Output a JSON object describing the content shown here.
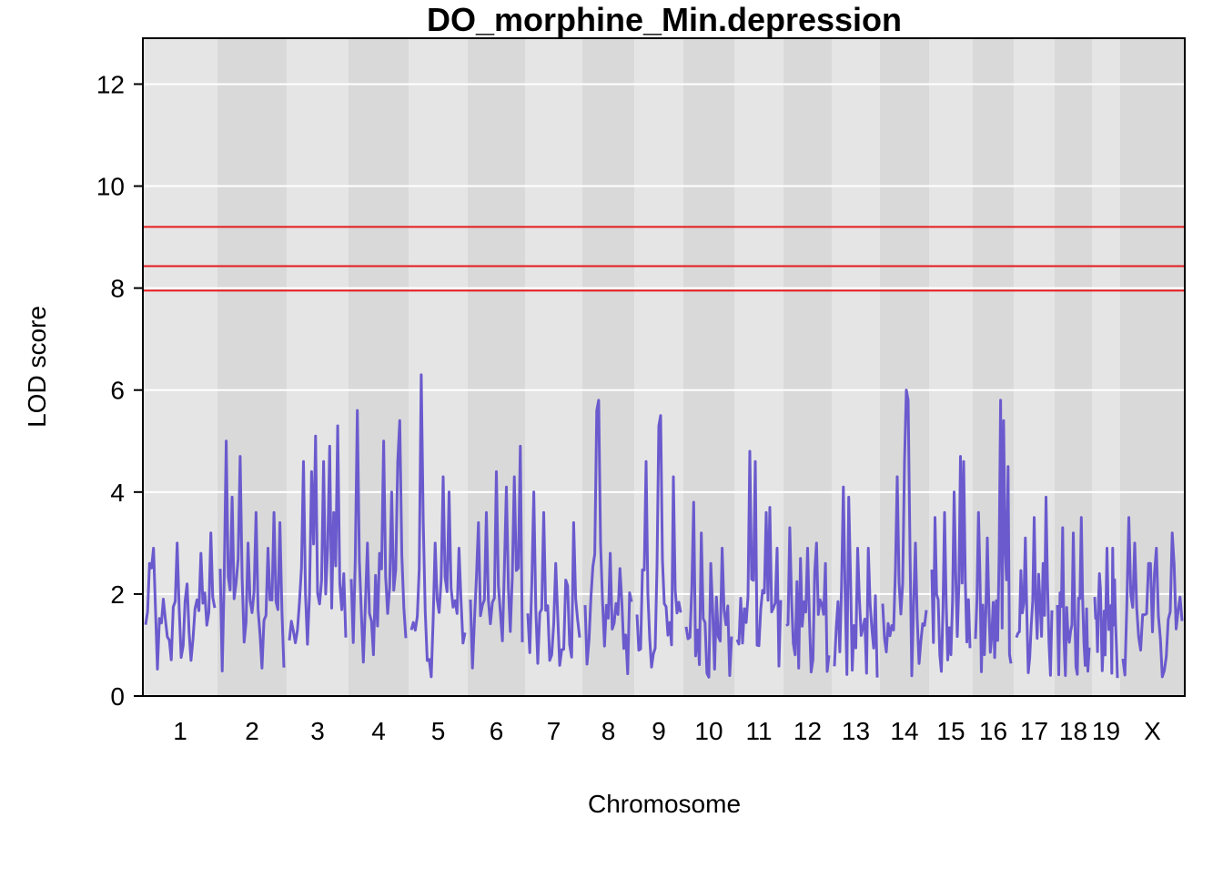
{
  "chart_data": {
    "type": "line",
    "title": "DO_morphine_Min.depression",
    "xlabel": "Chromosome",
    "ylabel": "LOD score",
    "ylim": [
      0,
      12.9
    ],
    "yticks": [
      0,
      2,
      4,
      6,
      8,
      10,
      12
    ],
    "grid": true,
    "colors": {
      "line": "#6a5acd",
      "threshold": "#e41a1c",
      "band_light": "#e5e5e5",
      "band_dark": "#d9d9d9",
      "gridline": "#ffffff"
    },
    "thresholds": [
      7.95,
      8.43,
      9.2
    ],
    "chromosomes": [
      {
        "label": "1",
        "peaks": [
          [
            0.05,
            2.6
          ],
          [
            0.1,
            2.9
          ],
          [
            0.25,
            1.9
          ],
          [
            0.45,
            3.0
          ],
          [
            0.6,
            2.2
          ],
          [
            0.8,
            2.8
          ],
          [
            0.95,
            3.2
          ]
        ]
      },
      {
        "label": "2",
        "peaks": [
          [
            0.1,
            5.0
          ],
          [
            0.2,
            3.9
          ],
          [
            0.3,
            4.7
          ],
          [
            0.45,
            3.0
          ],
          [
            0.55,
            3.6
          ],
          [
            0.75,
            2.9
          ],
          [
            0.85,
            3.6
          ],
          [
            0.95,
            3.4
          ]
        ]
      },
      {
        "label": "3",
        "peaks": [
          [
            0.25,
            4.6
          ],
          [
            0.4,
            4.4
          ],
          [
            0.45,
            5.1
          ],
          [
            0.6,
            4.6
          ],
          [
            0.7,
            4.9
          ],
          [
            0.8,
            3.6
          ],
          [
            0.85,
            5.3
          ],
          [
            0.95,
            2.4
          ]
        ]
      },
      {
        "label": "4",
        "peaks": [
          [
            0.1,
            5.6
          ],
          [
            0.3,
            3.0
          ],
          [
            0.5,
            2.8
          ],
          [
            0.6,
            5.0
          ],
          [
            0.75,
            4.0
          ],
          [
            0.85,
            4.6
          ],
          [
            0.9,
            5.4
          ]
        ]
      },
      {
        "label": "5",
        "peaks": [
          [
            0.15,
            2.5
          ],
          [
            0.2,
            6.3
          ],
          [
            0.45,
            3.0
          ],
          [
            0.6,
            4.3
          ],
          [
            0.7,
            4.0
          ],
          [
            0.9,
            2.9
          ]
        ]
      },
      {
        "label": "6",
        "peaks": [
          [
            0.15,
            3.4
          ],
          [
            0.3,
            3.6
          ],
          [
            0.5,
            4.4
          ],
          [
            0.7,
            4.1
          ],
          [
            0.85,
            4.3
          ],
          [
            0.95,
            4.9
          ]
        ]
      },
      {
        "label": "7",
        "peaks": [
          [
            0.1,
            4.0
          ],
          [
            0.3,
            3.6
          ],
          [
            0.55,
            2.6
          ],
          [
            0.75,
            3.9
          ],
          [
            0.9,
            3.4
          ]
        ]
      },
      {
        "label": "8",
        "peaks": [
          [
            0.25,
            5.6
          ],
          [
            0.3,
            5.8
          ],
          [
            0.55,
            2.8
          ],
          [
            0.75,
            2.5
          ]
        ]
      },
      {
        "label": "9",
        "peaks": [
          [
            0.2,
            4.6
          ],
          [
            0.5,
            5.3
          ],
          [
            0.55,
            5.5
          ],
          [
            0.85,
            4.3
          ]
        ]
      },
      {
        "label": "10",
        "peaks": [
          [
            0.15,
            3.8
          ],
          [
            0.35,
            3.2
          ],
          [
            0.55,
            2.6
          ],
          [
            0.8,
            2.9
          ]
        ]
      },
      {
        "label": "11",
        "peaks": [
          [
            0.3,
            4.8
          ],
          [
            0.4,
            4.6
          ],
          [
            0.65,
            3.6
          ],
          [
            0.75,
            3.7
          ],
          [
            0.9,
            2.9
          ]
        ]
      },
      {
        "label": "12",
        "peaks": [
          [
            0.1,
            3.3
          ],
          [
            0.35,
            2.7
          ],
          [
            0.5,
            2.9
          ],
          [
            0.7,
            3.0
          ],
          [
            0.9,
            2.6
          ]
        ]
      },
      {
        "label": "13",
        "peaks": [
          [
            0.2,
            4.1
          ],
          [
            0.35,
            3.9
          ],
          [
            0.55,
            2.9
          ],
          [
            0.8,
            2.9
          ]
        ]
      },
      {
        "label": "14",
        "peaks": [
          [
            0.35,
            4.3
          ],
          [
            0.5,
            4.6
          ],
          [
            0.55,
            6.0
          ],
          [
            0.6,
            5.8
          ],
          [
            0.75,
            3.0
          ]
        ]
      },
      {
        "label": "15",
        "peaks": [
          [
            0.1,
            3.5
          ],
          [
            0.35,
            3.6
          ],
          [
            0.6,
            4.0
          ],
          [
            0.75,
            4.7
          ],
          [
            0.85,
            4.6
          ]
        ]
      },
      {
        "label": "16",
        "peaks": [
          [
            0.1,
            3.6
          ],
          [
            0.35,
            3.1
          ],
          [
            0.7,
            5.8
          ],
          [
            0.8,
            5.4
          ],
          [
            0.9,
            4.5
          ]
        ]
      },
      {
        "label": "17",
        "peaks": [
          [
            0.25,
            3.1
          ],
          [
            0.5,
            3.5
          ],
          [
            0.75,
            2.6
          ],
          [
            0.85,
            3.9
          ]
        ]
      },
      {
        "label": "18",
        "peaks": [
          [
            0.15,
            3.3
          ],
          [
            0.5,
            3.2
          ],
          [
            0.75,
            3.5
          ]
        ]
      },
      {
        "label": "19",
        "peaks": [
          [
            0.2,
            2.4
          ],
          [
            0.55,
            2.9
          ],
          [
            0.8,
            2.9
          ]
        ]
      },
      {
        "label": "X",
        "peaks": [
          [
            0.1,
            3.5
          ],
          [
            0.2,
            3.0
          ],
          [
            0.45,
            2.6
          ],
          [
            0.55,
            2.9
          ],
          [
            0.85,
            3.2
          ]
        ]
      }
    ]
  }
}
